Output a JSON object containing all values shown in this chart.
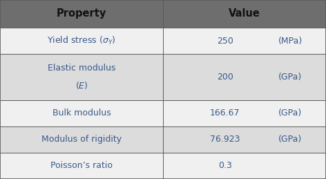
{
  "header": [
    "Property",
    "Value"
  ],
  "rows": [
    {
      "property_lines": [
        "Yield stress ($\\sigma_Y$)"
      ],
      "value": "250",
      "unit": "(MPa)",
      "bg": "#f0f0f0"
    },
    {
      "property_lines": [
        "Elastic modulus",
        "$(E)$"
      ],
      "value": "200",
      "unit": "(GPa)",
      "bg": "#dcdcdc"
    },
    {
      "property_lines": [
        "Bulk modulus"
      ],
      "value": "166.67",
      "unit": "(GPa)",
      "bg": "#f0f0f0"
    },
    {
      "property_lines": [
        "Modulus of rigidity"
      ],
      "value": "76.923",
      "unit": "(GPa)",
      "bg": "#dcdcdc"
    },
    {
      "property_lines": [
        "Poisson’s ratio"
      ],
      "value": "0.3",
      "unit": "",
      "bg": "#f0f0f0"
    }
  ],
  "header_bg": "#6e6e6e",
  "header_text_color": "#111111",
  "cell_text_color": "#3a5a8a",
  "col_split": 0.5,
  "figsize": [
    4.72,
    2.59
  ],
  "dpi": 100,
  "line_color": "#5a5a5a",
  "row_heights_units": [
    1.05,
    1.0,
    1.75,
    1.0,
    1.0,
    1.0
  ],
  "fontsize_header": 10.5,
  "fontsize_cell": 9.0
}
